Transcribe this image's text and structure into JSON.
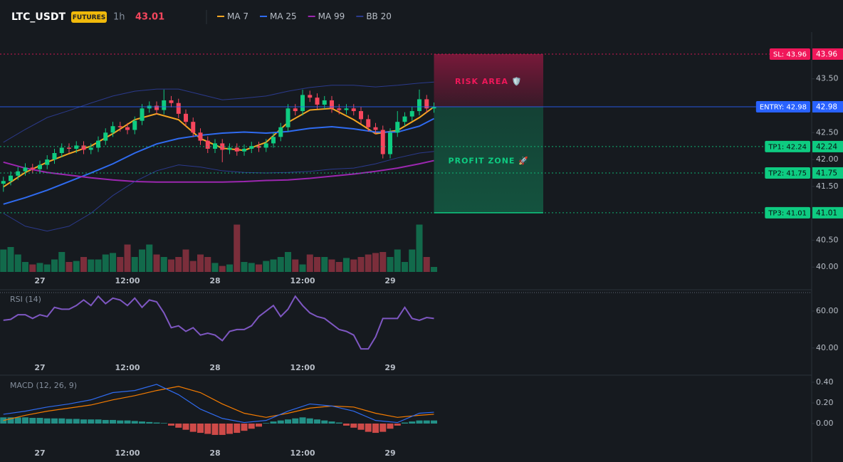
{
  "header": {
    "symbol": "LTC_USDT",
    "badge": "FUTURES",
    "interval": "1h",
    "price": 43.01
  },
  "chart_data": [
    {
      "type": "candlestick",
      "categories": [
        null,
        null,
        null,
        null,
        null,
        "27",
        null,
        null,
        null,
        null,
        null,
        null,
        null,
        null,
        null,
        null,
        null,
        "12:00",
        null,
        null,
        null,
        null,
        null,
        null,
        null,
        null,
        null,
        null,
        null,
        "28",
        null,
        null,
        null,
        null,
        null,
        null,
        null,
        null,
        null,
        null,
        null,
        "12:00",
        null,
        null,
        null,
        null,
        null,
        null,
        null,
        null,
        null,
        null,
        null,
        "29",
        null,
        null,
        null,
        null,
        null,
        null
      ],
      "open": [
        41.55,
        41.6,
        41.7,
        41.78,
        41.85,
        41.82,
        41.9,
        42.0,
        42.12,
        42.22,
        42.2,
        42.26,
        42.18,
        42.22,
        42.35,
        42.5,
        42.62,
        42.6,
        42.55,
        42.72,
        42.95,
        43.0,
        42.92,
        43.1,
        43.05,
        42.85,
        42.7,
        42.5,
        42.35,
        42.2,
        42.3,
        42.18,
        42.22,
        42.15,
        42.2,
        42.25,
        42.22,
        42.3,
        42.42,
        42.6,
        42.95,
        42.9,
        43.2,
        43.15,
        43.02,
        43.1,
        42.95,
        42.92,
        42.95,
        42.9,
        42.75,
        42.6,
        42.55,
        42.1,
        42.5,
        42.7,
        42.8,
        42.9,
        43.12,
        42.95
      ],
      "high": [
        41.68,
        41.78,
        41.86,
        41.93,
        41.92,
        41.98,
        42.08,
        42.2,
        42.3,
        42.3,
        42.34,
        42.34,
        42.3,
        42.43,
        42.58,
        42.7,
        42.7,
        42.68,
        42.8,
        43.03,
        43.08,
        43.08,
        43.3,
        43.18,
        43.13,
        42.93,
        42.78,
        42.58,
        42.43,
        42.38,
        42.38,
        42.3,
        42.3,
        42.28,
        42.33,
        42.33,
        42.38,
        42.5,
        42.68,
        43.03,
        43.03,
        43.3,
        43.28,
        43.23,
        43.18,
        43.18,
        43.03,
        43.03,
        43.03,
        42.98,
        42.83,
        42.68,
        42.63,
        42.58,
        42.9,
        42.88,
        42.98,
        43.3,
        43.2,
        43.06
      ],
      "low": [
        41.4,
        41.52,
        41.62,
        41.7,
        41.74,
        41.74,
        41.82,
        41.92,
        42.04,
        42.12,
        42.12,
        42.1,
        42.1,
        42.14,
        42.27,
        42.42,
        42.52,
        42.47,
        42.47,
        42.64,
        42.87,
        42.84,
        42.84,
        42.97,
        42.77,
        42.62,
        42.42,
        42.27,
        42.12,
        42.12,
        41.95,
        42.1,
        42.07,
        42.07,
        42.12,
        42.14,
        42.14,
        42.22,
        42.34,
        42.52,
        42.82,
        42.82,
        43.07,
        42.94,
        42.94,
        42.87,
        42.84,
        42.84,
        42.82,
        42.67,
        42.52,
        42.47,
        42.02,
        42.02,
        42.42,
        42.62,
        42.72,
        42.82,
        42.87,
        42.87
      ],
      "close": [
        41.6,
        41.7,
        41.78,
        41.85,
        41.82,
        41.9,
        42.0,
        42.12,
        42.22,
        42.2,
        42.26,
        42.18,
        42.22,
        42.35,
        42.5,
        42.62,
        42.6,
        42.55,
        42.72,
        42.95,
        43.0,
        42.92,
        43.1,
        43.05,
        42.85,
        42.7,
        42.5,
        42.35,
        42.2,
        42.3,
        42.18,
        42.22,
        42.15,
        42.2,
        42.25,
        42.22,
        42.3,
        42.42,
        42.6,
        42.95,
        42.9,
        43.2,
        43.15,
        43.02,
        43.1,
        42.95,
        42.92,
        42.95,
        42.9,
        42.75,
        42.6,
        42.55,
        42.1,
        42.5,
        42.7,
        42.8,
        42.9,
        43.12,
        42.95,
        42.98
      ],
      "up_color": "#0ecb81",
      "down_color": "#f6465d",
      "ylim": [
        39.87,
        44.37
      ],
      "yticks": [
        {
          "value": 43.5,
          "label": "43.50"
        },
        {
          "value": 42.5,
          "label": "42.50"
        },
        {
          "value": 42,
          "label": "42.00"
        },
        {
          "value": 41.5,
          "label": "41.50"
        },
        {
          "value": 40.5,
          "label": "40.50"
        },
        {
          "value": 40,
          "label": "40.00"
        }
      ],
      "x": [
        0,
        3,
        6,
        9,
        12,
        15,
        18,
        21,
        24,
        27,
        30,
        33,
        36,
        39,
        42,
        45,
        48,
        51,
        54,
        57,
        59
      ],
      "series": [
        {
          "name": "MA 7",
          "color": "#f5a623",
          "values": [
            41.49,
            41.76,
            41.95,
            42.11,
            42.25,
            42.48,
            42.74,
            42.85,
            42.74,
            42.39,
            42.21,
            42.17,
            42.32,
            42.69,
            42.92,
            42.95,
            42.74,
            42.48,
            42.54,
            42.78,
            42.98
          ]
        },
        {
          "name": "MA 25",
          "color": "#2f6bf0",
          "values": [
            41.17,
            41.29,
            41.43,
            41.59,
            41.75,
            41.92,
            42.12,
            42.29,
            42.39,
            42.45,
            42.49,
            42.51,
            42.49,
            42.52,
            42.58,
            42.61,
            42.57,
            42.51,
            42.51,
            42.62,
            42.76
          ]
        },
        {
          "name": "MA 99",
          "color": "#9c27b0",
          "values": [
            41.95,
            41.84,
            41.76,
            41.71,
            41.66,
            41.62,
            41.59,
            41.58,
            41.58,
            41.58,
            41.58,
            41.59,
            41.61,
            41.62,
            41.65,
            41.69,
            41.73,
            41.78,
            41.84,
            41.92,
            41.98
          ]
        },
        {
          "name": "BB 20",
          "color": "#2b3a8c",
          "values": [
            42.32,
            42.56,
            42.78,
            42.91,
            43.05,
            43.18,
            43.27,
            43.31,
            43.31,
            43.21,
            43.11,
            43.14,
            43.18,
            43.27,
            43.34,
            43.38,
            43.38,
            43.35,
            43.38,
            43.42,
            43.44
          ],
          "lower": [
            41.0,
            40.76,
            40.67,
            40.76,
            41.0,
            41.33,
            41.59,
            41.79,
            41.9,
            41.86,
            41.79,
            41.76,
            41.75,
            41.76,
            41.78,
            41.82,
            41.84,
            41.92,
            42.03,
            42.12,
            42.15
          ]
        }
      ],
      "volume": {
        "ylim": [
          0,
          100
        ],
        "values": [
          45,
          50,
          35,
          20,
          15,
          18,
          15,
          25,
          40,
          20,
          22,
          30,
          25,
          25,
          35,
          38,
          30,
          55,
          30,
          45,
          55,
          35,
          30,
          25,
          30,
          45,
          22,
          35,
          30,
          18,
          12,
          15,
          95,
          20,
          18,
          15,
          22,
          25,
          30,
          40,
          25,
          15,
          35,
          30,
          30,
          25,
          20,
          28,
          25,
          30,
          35,
          38,
          40,
          30,
          45,
          20,
          45,
          95,
          30,
          10
        ]
      },
      "levels": [
        {
          "label": "SL: 43.96",
          "value": 43.96,
          "color": "#f0175a",
          "text_color": "#ffffff",
          "style": "dotted"
        },
        {
          "label": "ENTRY: 42.98",
          "value": 42.98,
          "color": "#2962ff",
          "text_color": "#ffffff",
          "style": "solid"
        },
        {
          "label": "TP1: 42.24",
          "value": 42.24,
          "color": "#0ecb81",
          "text_color": "#0b0e11",
          "style": "dotted"
        },
        {
          "label": "TP2: 41.75",
          "value": 41.75,
          "color": "#0ecb81",
          "text_color": "#0b0e11",
          "style": "dotted"
        },
        {
          "label": "TP3: 41.01",
          "value": 41.01,
          "color": "#0ecb81",
          "text_color": "#0b0e11",
          "style": "dotted"
        }
      ],
      "zones": {
        "risk": "RISK AREA 🛡️",
        "profit": "PROFIT ZONE 🚀"
      }
    },
    {
      "type": "line",
      "title": "RSI (14)",
      "color": "#7e57c2",
      "ylim": [
        33,
        70
      ],
      "yticks": [
        {
          "value": 60,
          "label": "60.00"
        },
        {
          "value": 40,
          "label": "40.00"
        }
      ],
      "values": [
        55,
        55.5,
        58,
        58,
        56,
        58,
        57,
        62,
        61,
        61,
        63,
        66,
        63,
        68,
        64,
        67,
        66,
        63,
        67,
        62,
        66,
        65,
        59,
        51,
        52,
        49,
        51,
        47,
        48,
        47,
        44,
        49,
        50,
        50,
        52,
        57,
        60,
        63,
        57,
        61,
        68,
        63,
        59,
        57,
        56,
        53,
        50,
        49,
        47,
        39.5,
        39.5,
        46,
        56,
        56,
        56,
        62,
        56,
        55,
        56.5,
        56
      ]
    },
    {
      "type": "macd",
      "title": "MACD (12, 26, 9)",
      "ylim": [
        -0.2,
        0.45
      ],
      "yticks": [
        {
          "value": 0.4,
          "label": "0.40"
        },
        {
          "value": 0.2,
          "label": "0.20"
        },
        {
          "value": 0,
          "label": "0.00"
        }
      ],
      "x": [
        0,
        3,
        6,
        9,
        12,
        15,
        18,
        21,
        24,
        27,
        30,
        33,
        36,
        39,
        42,
        45,
        48,
        51,
        54,
        57,
        59
      ],
      "macd": {
        "color": "#2f6bf0",
        "values": [
          0.09,
          0.12,
          0.16,
          0.19,
          0.23,
          0.3,
          0.32,
          0.38,
          0.28,
          0.14,
          0.05,
          0.01,
          0.03,
          0.12,
          0.19,
          0.17,
          0.12,
          0.03,
          0.01,
          0.1,
          0.11
        ]
      },
      "signal": {
        "color": "#f57c00",
        "values": [
          0.03,
          0.08,
          0.12,
          0.15,
          0.18,
          0.23,
          0.27,
          0.32,
          0.36,
          0.3,
          0.19,
          0.1,
          0.06,
          0.1,
          0.15,
          0.17,
          0.16,
          0.1,
          0.06,
          0.08,
          0.09
        ]
      },
      "histogram": {
        "up_color": "#26a69a",
        "down_color": "#ef5350",
        "values": [
          0.06,
          0.06,
          0.06,
          0.06,
          0.055,
          0.055,
          0.05,
          0.05,
          0.05,
          0.045,
          0.045,
          0.04,
          0.04,
          0.04,
          0.035,
          0.035,
          0.03,
          0.03,
          0.025,
          0.02,
          0.015,
          0.01,
          0.005,
          -0.02,
          -0.04,
          -0.06,
          -0.08,
          -0.09,
          -0.1,
          -0.11,
          -0.11,
          -0.1,
          -0.09,
          -0.07,
          -0.05,
          -0.03,
          0.005,
          0.02,
          0.03,
          0.04,
          0.05,
          0.06,
          0.05,
          0.04,
          0.03,
          0.02,
          0.01,
          -0.02,
          -0.04,
          -0.06,
          -0.08,
          -0.09,
          -0.08,
          -0.05,
          -0.02,
          0.01,
          0.02,
          0.03,
          0.03,
          0.03
        ]
      }
    }
  ]
}
